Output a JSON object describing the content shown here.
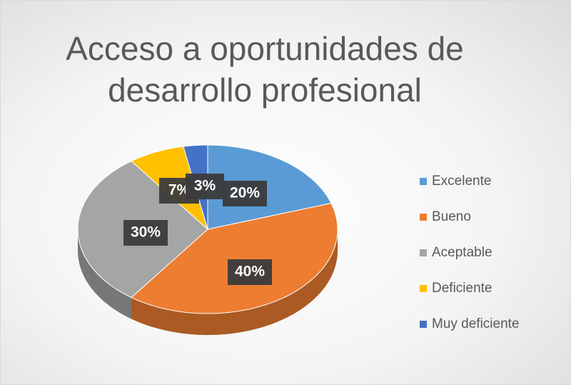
{
  "chart_data": {
    "type": "pie",
    "title": "Acceso a oportunidades de desarrollo profesional",
    "categories": [
      "Excelente",
      "Bueno",
      "Aceptable",
      "Deficiente",
      "Muy deficiente"
    ],
    "values": [
      20,
      40,
      30,
      7,
      3
    ],
    "value_labels": [
      "20%",
      "40%",
      "30%",
      "7%",
      "3%"
    ],
    "colors": [
      "#5b9bd5",
      "#ed7d31",
      "#a5a5a5",
      "#ffc000",
      "#4472c4"
    ],
    "legend": "right"
  }
}
